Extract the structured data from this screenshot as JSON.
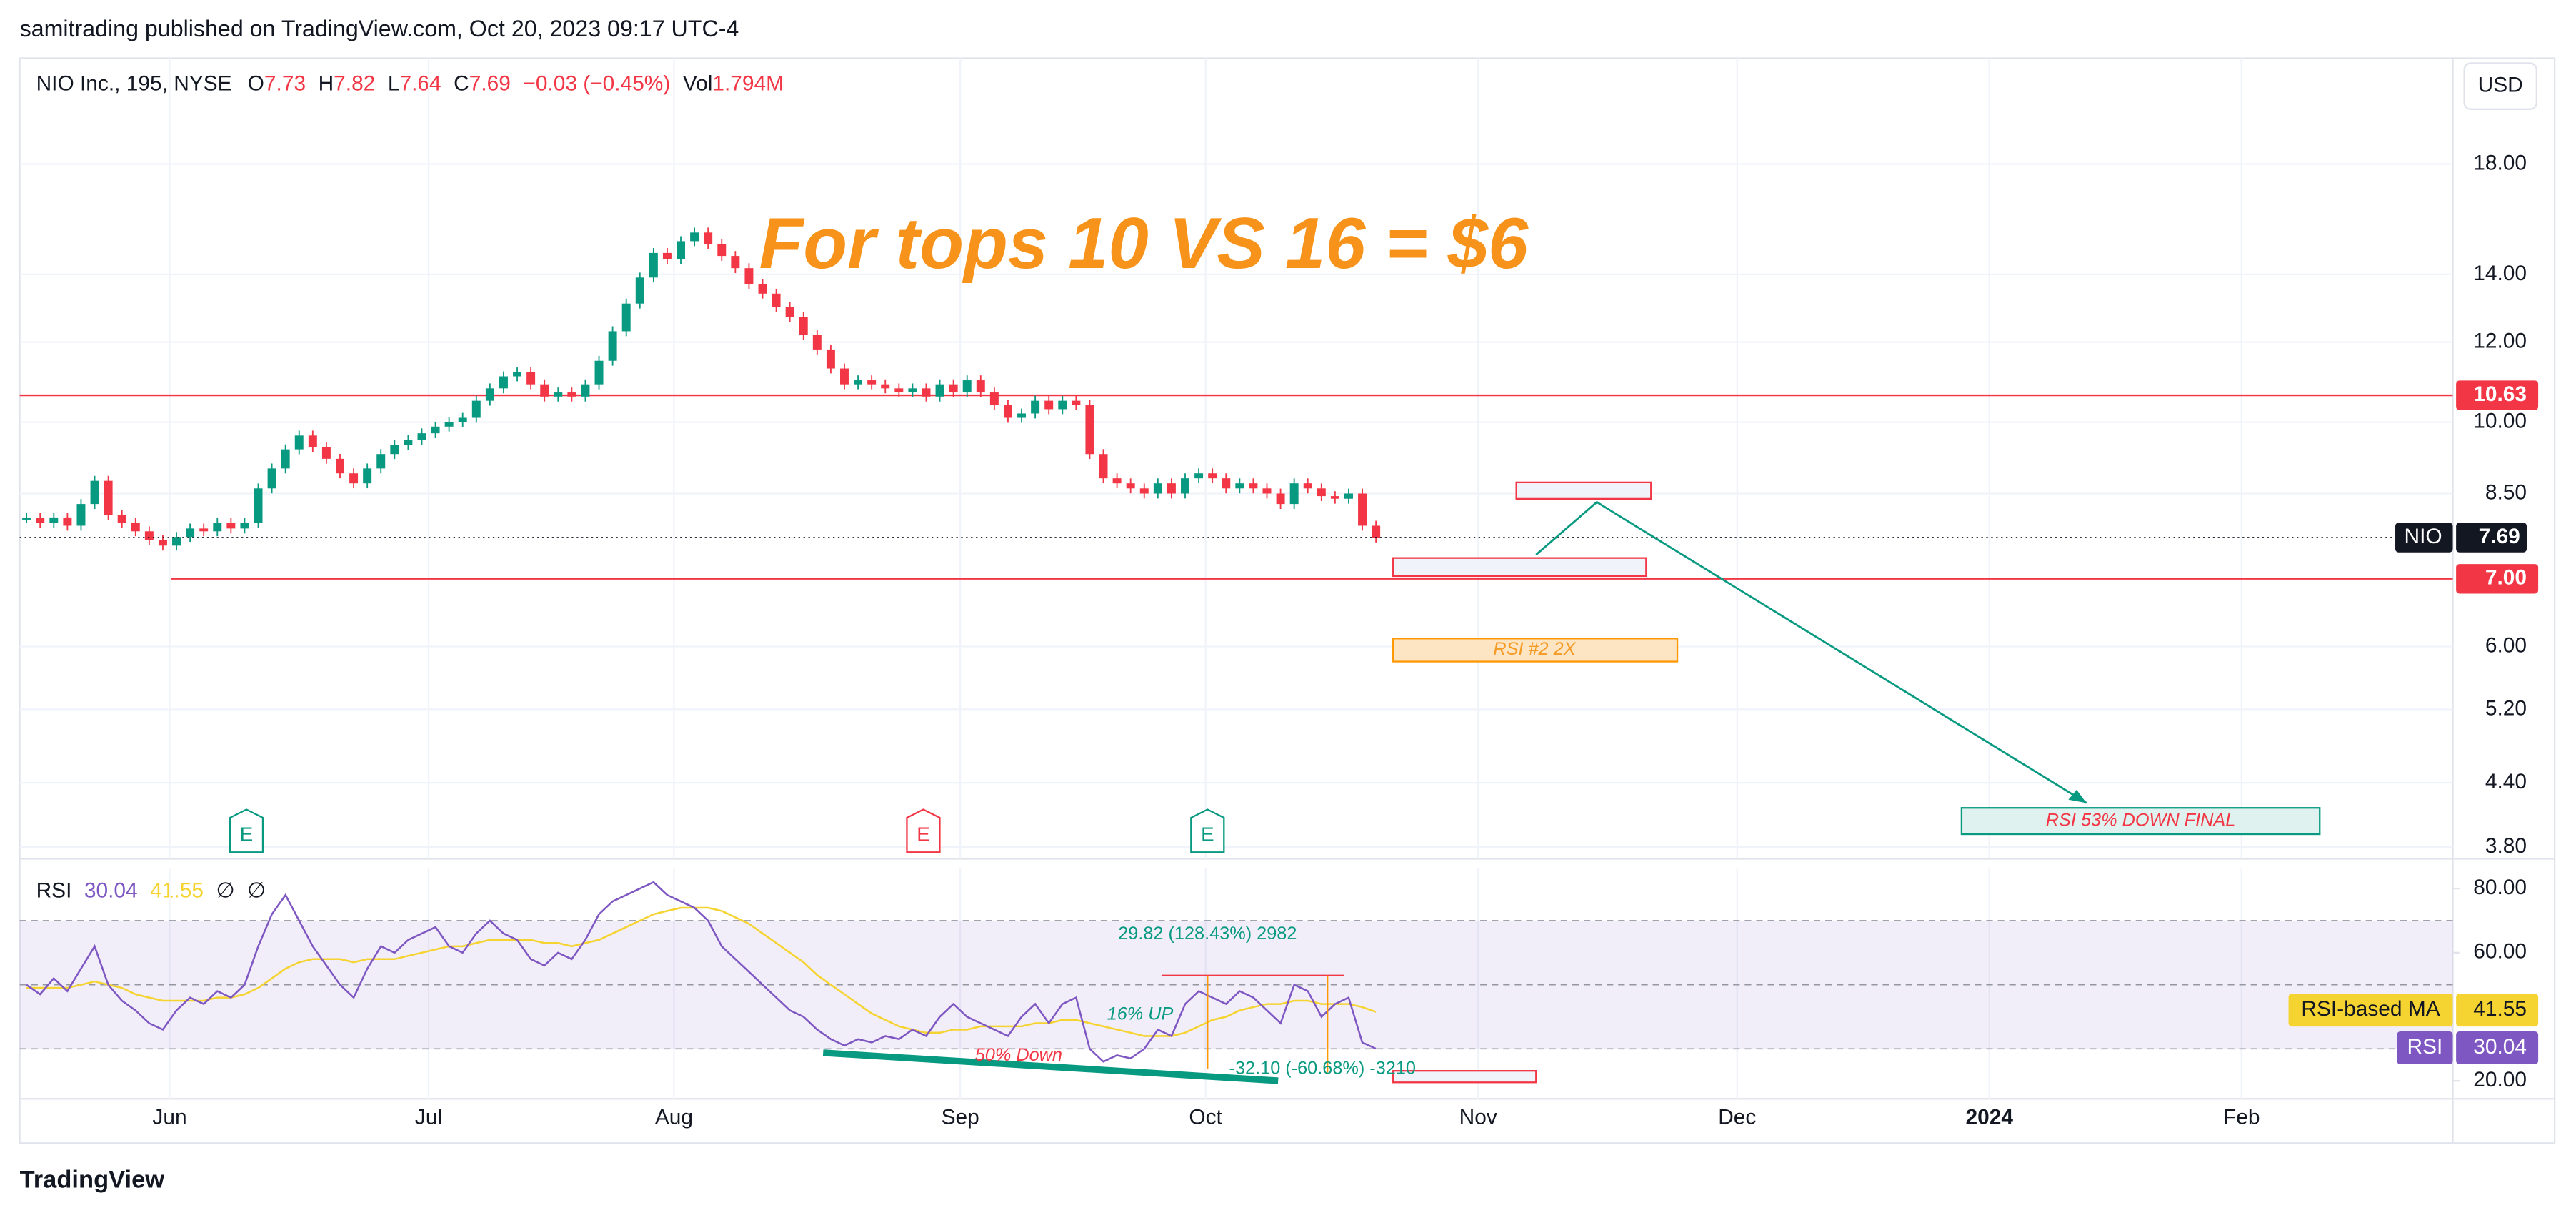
{
  "header": {
    "publisher": "samitrading published on TradingView.com, Oct 20, 2023 09:17 UTC-4"
  },
  "legend": {
    "symbol": "NIO Inc., 195, NYSE",
    "open_label": "O",
    "open": 7.73,
    "high_label": "H",
    "high": 7.82,
    "low_label": "L",
    "low": 7.64,
    "close_label": "C",
    "close": 7.69,
    "change": "−0.03 (−0.45%)",
    "volume_label": "Vol",
    "volume": "1.794M"
  },
  "currency": "USD",
  "chart_data": [
    {
      "type": "candlestick",
      "symbol_label": "NIO",
      "log_scale": true,
      "up_color": "#089981",
      "down_color": "#f23645",
      "values": [
        8.04,
        7.95,
        8.05,
        7.9,
        8.3,
        8.75,
        8.1,
        7.95,
        7.8,
        7.65,
        7.55,
        7.7,
        7.85,
        7.8,
        7.95,
        7.85,
        7.95,
        8.6,
        9.0,
        9.4,
        9.7,
        9.45,
        9.2,
        8.9,
        8.7,
        9.0,
        9.3,
        9.5,
        9.6,
        9.75,
        9.9,
        10.0,
        10.1,
        10.5,
        10.8,
        11.1,
        11.2,
        10.9,
        10.6,
        10.7,
        10.6,
        10.9,
        11.5,
        12.3,
        13.1,
        13.9,
        14.7,
        14.5,
        15.1,
        15.4,
        15.0,
        14.6,
        14.2,
        13.7,
        13.4,
        13.0,
        12.7,
        12.2,
        11.8,
        11.3,
        10.9,
        11.0,
        10.9,
        10.8,
        10.7,
        10.8,
        10.6,
        10.9,
        10.7,
        11.0,
        10.7,
        10.4,
        10.1,
        10.2,
        10.5,
        10.3,
        10.5,
        10.4,
        9.3,
        8.8,
        8.7,
        8.6,
        8.5,
        8.7,
        8.5,
        8.8,
        8.9,
        8.8,
        8.6,
        8.7,
        8.6,
        8.5,
        8.3,
        8.7,
        8.6,
        8.45,
        8.4,
        8.5,
        7.9,
        7.69
      ],
      "xlim": [
        -0.5,
        178
      ],
      "xticks": [
        {
          "value": 10.5,
          "label": "Jun"
        },
        {
          "value": 29.5,
          "label": "Jul"
        },
        {
          "value": 47.5,
          "label": "Aug"
        },
        {
          "value": 68.5,
          "label": "Sep"
        },
        {
          "value": 86.5,
          "label": "Oct"
        },
        {
          "value": 106.5,
          "label": "Nov"
        },
        {
          "value": 125.5,
          "label": "Dec"
        },
        {
          "value": 144,
          "label": "2024"
        },
        {
          "value": 162.5,
          "label": "Feb"
        }
      ],
      "ylim": [
        3.7,
        22.9
      ],
      "yticks": [
        {
          "value": 18,
          "label": "18.00"
        },
        {
          "value": 14,
          "label": "14.00"
        },
        {
          "value": 12,
          "label": "12.00"
        },
        {
          "value": 10,
          "label": "10.00"
        },
        {
          "value": 8.5,
          "label": "8.50"
        },
        {
          "value": 6,
          "label": "6.00"
        },
        {
          "value": 5.2,
          "label": "5.20"
        },
        {
          "value": 4.4,
          "label": "4.40"
        },
        {
          "value": 3.8,
          "label": "3.80"
        }
      ],
      "grid": true,
      "price_lines": [
        {
          "value": 10.63,
          "color": "#f23645"
        },
        {
          "value": 7,
          "label": "7.00",
          "color": "#f23645"
        }
      ]
    },
    {
      "type": "line",
      "title": "RSI",
      "placeholders": [
        "∅",
        "∅"
      ],
      "series": [
        {
          "name": "RSI",
          "color": "#7e57c2",
          "values": [
            50,
            47,
            52,
            48,
            55,
            62,
            50,
            45,
            42,
            38,
            36,
            42,
            46,
            44,
            48,
            46,
            50,
            62,
            72,
            78,
            70,
            62,
            56,
            50,
            46,
            55,
            62,
            60,
            64,
            66,
            68,
            62,
            60,
            66,
            70,
            66,
            64,
            58,
            56,
            60,
            58,
            64,
            72,
            76,
            78,
            80,
            82,
            78,
            76,
            74,
            70,
            62,
            58,
            54,
            50,
            46,
            42,
            40,
            36,
            33,
            31,
            33,
            32,
            34,
            33,
            36,
            34,
            40,
            44,
            40,
            38,
            36,
            34,
            40,
            44,
            38,
            44,
            46,
            30,
            26,
            28,
            27,
            30,
            36,
            34,
            44,
            48,
            46,
            44,
            48,
            46,
            42,
            38,
            50,
            48,
            40,
            44,
            46,
            32,
            30.04
          ]
        },
        {
          "name": "RSI-based MA",
          "color": "#f5d330",
          "values": [
            49,
            49,
            49,
            49,
            50,
            51,
            50,
            49,
            47,
            46,
            45,
            45,
            45,
            45,
            46,
            46,
            47,
            49,
            52,
            55,
            57,
            58,
            58,
            58,
            57,
            58,
            58,
            58,
            59,
            60,
            61,
            62,
            62,
            63,
            64,
            64,
            64,
            64,
            63,
            63,
            62,
            63,
            64,
            66,
            68,
            70,
            72,
            73,
            74,
            74,
            74,
            73,
            71,
            69,
            66,
            63,
            60,
            57,
            53,
            50,
            47,
            44,
            41,
            39,
            37,
            36,
            35,
            35,
            36,
            36,
            37,
            37,
            37,
            37,
            38,
            38,
            39,
            39,
            38,
            37,
            36,
            35,
            34,
            34,
            34,
            35,
            37,
            39,
            40,
            42,
            43,
            44,
            44,
            45,
            45,
            44,
            44,
            44,
            43,
            41.55
          ]
        }
      ],
      "ylim": [
        14.4,
        86.2
      ],
      "yticks": [
        {
          "value": 80,
          "label": "80.00"
        },
        {
          "value": 60,
          "label": "60.00"
        },
        {
          "value": 20,
          "label": "20.00"
        }
      ],
      "band": [
        30,
        70
      ],
      "hlines": [
        70,
        50,
        30
      ]
    }
  ],
  "annotations": {
    "headline": "For tops 10 VS 16  = $6",
    "rsi_box": "RSI #2   2X",
    "target_box": "RSI 53% DOWN FINAL",
    "measure_up": "29.82 (128.43%) 2982",
    "up_note": "16% UP",
    "down_note": "50% Down",
    "measure_down": "-32.10 (-60.68%) -3210",
    "earnings": [
      "E",
      "E",
      "E"
    ]
  },
  "footer": {
    "brand": "TradingView"
  }
}
